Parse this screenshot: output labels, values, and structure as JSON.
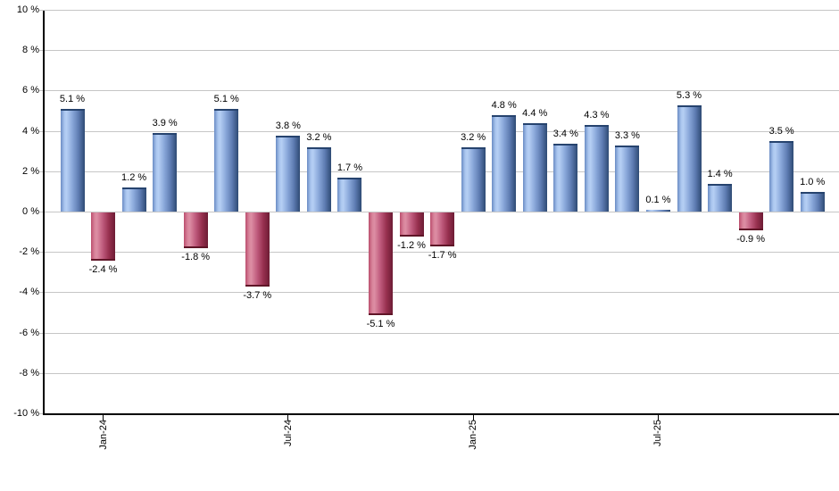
{
  "chart_data": {
    "type": "bar",
    "unit": "%",
    "ylim": [
      -10,
      10
    ],
    "ytick_step": 2,
    "grid": true,
    "background": "#ffffff",
    "colors": {
      "positive_bar": "#7aa0d4",
      "positive_bar_dark": "#2e4a74",
      "negative_bar": "#c05c7e",
      "negative_bar_dark": "#6d1c34",
      "gridline": "#c6c6c6",
      "axis": "#000000",
      "text": "#000000"
    },
    "yticks": [
      {
        "value": 10,
        "label": "10 %"
      },
      {
        "value": 8,
        "label": "8 %"
      },
      {
        "value": 6,
        "label": "6 %"
      },
      {
        "value": 4,
        "label": "4 %"
      },
      {
        "value": 2,
        "label": "2 %"
      },
      {
        "value": 0,
        "label": "0 %"
      },
      {
        "value": -2,
        "label": "-2 %"
      },
      {
        "value": -4,
        "label": "-4 %"
      },
      {
        "value": -6,
        "label": "-6 %"
      },
      {
        "value": -8,
        "label": "-8 %"
      },
      {
        "value": -10,
        "label": "-10 %"
      }
    ],
    "xticks": [
      {
        "bar_index": 1,
        "label": "Jan-24"
      },
      {
        "bar_index": 7,
        "label": "Jul-24"
      },
      {
        "bar_index": 13,
        "label": "Jan-25"
      },
      {
        "bar_index": 19,
        "label": "Jul-25"
      }
    ],
    "bars": [
      {
        "value": 5.1,
        "label": "5.1 %"
      },
      {
        "value": -2.4,
        "label": "-2.4 %"
      },
      {
        "value": 1.2,
        "label": "1.2 %"
      },
      {
        "value": 3.9,
        "label": "3.9 %"
      },
      {
        "value": -1.8,
        "label": "-1.8 %"
      },
      {
        "value": 5.1,
        "label": "5.1 %"
      },
      {
        "value": -3.7,
        "label": "-3.7 %"
      },
      {
        "value": 3.8,
        "label": "3.8 %"
      },
      {
        "value": 3.2,
        "label": "3.2 %"
      },
      {
        "value": 1.7,
        "label": "1.7 %"
      },
      {
        "value": -5.1,
        "label": "-5.1 %"
      },
      {
        "value": -1.2,
        "label": "-1.2 %"
      },
      {
        "value": -1.7,
        "label": "-1.7 %"
      },
      {
        "value": 3.2,
        "label": "3.2 %"
      },
      {
        "value": 4.8,
        "label": "4.8 %"
      },
      {
        "value": 4.4,
        "label": "4.4 %"
      },
      {
        "value": 3.4,
        "label": "3.4 %"
      },
      {
        "value": 4.3,
        "label": "4.3 %"
      },
      {
        "value": 3.3,
        "label": "3.3 %"
      },
      {
        "value": 0.1,
        "label": "0.1 %"
      },
      {
        "value": 5.3,
        "label": "5.3 %"
      },
      {
        "value": 1.4,
        "label": "1.4 %"
      },
      {
        "value": -0.9,
        "label": "-0.9 %"
      },
      {
        "value": 3.5,
        "label": "3.5 %"
      },
      {
        "value": 1.0,
        "label": "1.0 %"
      }
    ]
  }
}
